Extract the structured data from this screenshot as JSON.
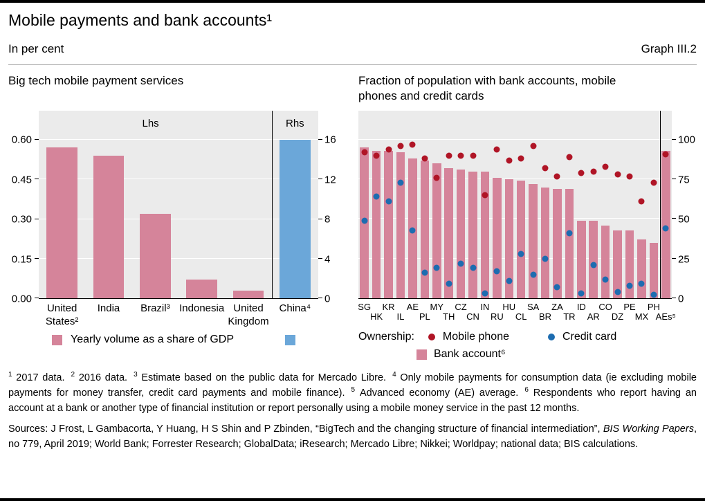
{
  "header": {
    "title": "Mobile payments and bank accounts¹",
    "unit": "In per cent",
    "graph_label": "Graph III.2"
  },
  "chart_data": [
    {
      "type": "bar",
      "panel_title": "Big tech mobile payment services",
      "axis_note_left": "Lhs",
      "axis_note_right": "Rhs",
      "lhs_axis": {
        "ticks": [
          {
            "label": "0.60",
            "value": 0.6
          },
          {
            "label": "0.45",
            "value": 0.45
          },
          {
            "label": "0.30",
            "value": 0.3
          },
          {
            "label": "0.15",
            "value": 0.15
          },
          {
            "label": "0.00",
            "value": 0.0
          }
        ],
        "max": 0.71,
        "ylim": [
          0,
          0.71
        ]
      },
      "rhs_axis": {
        "ticks": [
          {
            "label": "16",
            "value": 16
          },
          {
            "label": "12",
            "value": 12
          },
          {
            "label": "8",
            "value": 8
          },
          {
            "label": "4",
            "value": 4
          },
          {
            "label": "0",
            "value": 0
          }
        ],
        "max": 18.93,
        "ylim": [
          0,
          18.93
        ]
      },
      "bars": [
        {
          "label": "United States²",
          "value": 0.57,
          "axis": "lhs"
        },
        {
          "label": "India",
          "value": 0.54,
          "axis": "lhs"
        },
        {
          "label": "Brazil³",
          "value": 0.32,
          "axis": "lhs"
        },
        {
          "label": "Indonesia",
          "value": 0.07,
          "axis": "lhs"
        },
        {
          "label": "United Kingdom",
          "value": 0.03,
          "axis": "lhs"
        },
        {
          "label": "China⁴",
          "value": 16,
          "axis": "rhs"
        }
      ],
      "separator_after_index": 4,
      "legend_label": "Yearly volume as a share of GDP",
      "colors": {
        "lhs": "#d5849a",
        "rhs": "#6ba7d9",
        "plot_bg": "#ebebeb",
        "grid": "#ffffff"
      }
    },
    {
      "type": "bar+scatter",
      "panel_title": "Fraction of population with bank accounts, mobile phones and credit cards",
      "axis": {
        "ticks": [
          {
            "label": "100",
            "value": 100
          },
          {
            "label": "75",
            "value": 75
          },
          {
            "label": "50",
            "value": 50
          },
          {
            "label": "25",
            "value": 25
          },
          {
            "label": "0",
            "value": 0
          }
        ],
        "max": 118.3,
        "ylim": [
          0,
          118.3
        ]
      },
      "categories": [
        "SG",
        "HK",
        "KR",
        "IL",
        "AE",
        "PL",
        "MY",
        "TH",
        "CZ",
        "CN",
        "IN",
        "RU",
        "HU",
        "CL",
        "SA",
        "BR",
        "ZA",
        "TR",
        "ID",
        "AR",
        "CO",
        "DZ",
        "PE",
        "MX",
        "PH",
        "AEs⁵"
      ],
      "series": [
        {
          "name": "Bank account⁶",
          "type": "bar",
          "color": "#d5849a",
          "values": [
            95,
            93,
            93,
            92,
            88,
            87,
            85,
            82,
            81,
            80,
            80,
            76,
            75,
            74,
            72,
            70,
            69,
            69,
            49,
            49,
            46,
            43,
            43,
            37,
            35,
            93
          ]
        },
        {
          "name": "Mobile phone",
          "type": "dot",
          "color": "#b01526",
          "values": [
            92,
            90,
            94,
            96,
            97,
            88,
            76,
            90,
            90,
            90,
            65,
            94,
            87,
            88,
            96,
            82,
            77,
            89,
            79,
            80,
            83,
            78,
            77,
            61,
            73,
            91
          ]
        },
        {
          "name": "Credit card",
          "type": "dot",
          "color": "#1d6cb0",
          "values": [
            49,
            64,
            61,
            73,
            43,
            16,
            19,
            9,
            22,
            19,
            3,
            17,
            11,
            28,
            15,
            25,
            7,
            41,
            3,
            21,
            12,
            4,
            8,
            9,
            2,
            44
          ]
        }
      ],
      "separator_before_index": 25,
      "legend_prefix": "Ownership:"
    }
  ],
  "footnotes": [
    {
      "marker": "1",
      "text": "2017 data."
    },
    {
      "marker": "2",
      "text": "2016 data."
    },
    {
      "marker": "3",
      "text": "Estimate based on the public data for Mercado Libre."
    },
    {
      "marker": "4",
      "text": "Only mobile payments for consumption data (ie excluding mobile payments for money transfer, credit card payments and mobile finance)."
    },
    {
      "marker": "5",
      "text": "Advanced economy (AE) average."
    },
    {
      "marker": "6",
      "text": "Respondents who report having an account at a bank or another type of financial institution or report personally using a mobile money service in the past 12 months."
    }
  ],
  "sources_parts": [
    {
      "text": "Sources: J Frost, L Gambacorta, Y Huang, H S Shin and P Zbinden, “BigTech and the changing structure of financial intermediation”, ",
      "italic": false
    },
    {
      "text": "BIS Working Papers",
      "italic": true
    },
    {
      "text": ", no 779, April 2019; World Bank; Forrester Research; GlobalData; iResearch; Mercado Libre; Nikkei; Worldpay; national data; BIS calculations.",
      "italic": false
    }
  ]
}
